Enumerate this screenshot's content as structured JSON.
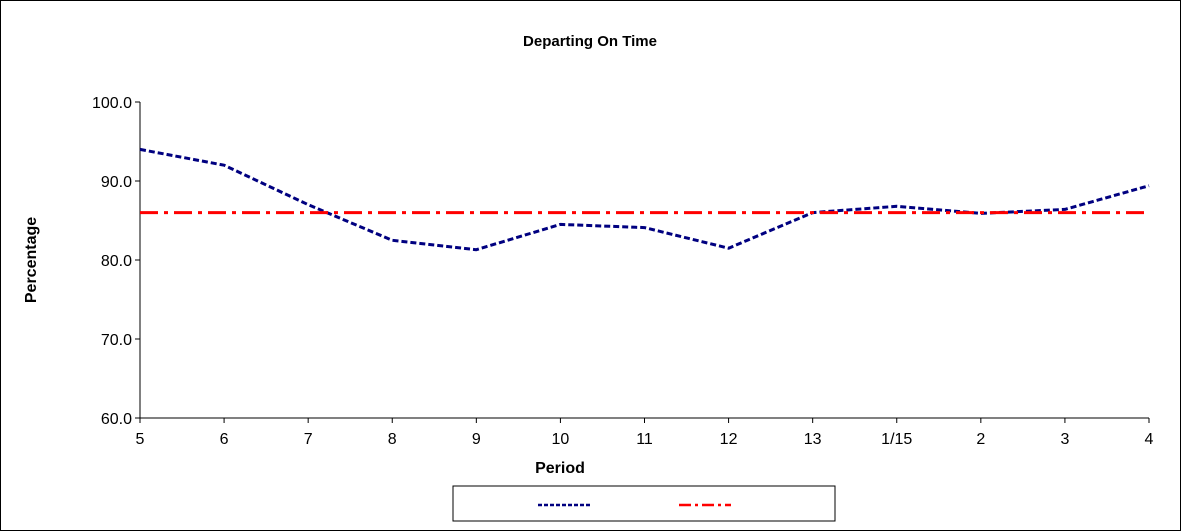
{
  "chart_data": {
    "type": "line",
    "title": "Departing On Time",
    "xlabel": "Period",
    "ylabel": "Percentage",
    "categories": [
      "5",
      "6",
      "7",
      "8",
      "9",
      "10",
      "11",
      "12",
      "13",
      "1/15",
      "2",
      "3",
      "4"
    ],
    "ylim": [
      60.0,
      100.0
    ],
    "yticks": [
      "60.0",
      "70.0",
      "80.0",
      "90.0",
      "100.0"
    ],
    "grid": false,
    "legend_placement": "bottom",
    "series": [
      {
        "name": "",
        "color": "#000080",
        "style": "dashed",
        "values": [
          94.0,
          92.0,
          87.0,
          82.5,
          81.3,
          84.5,
          84.1,
          81.5,
          86.0,
          86.8,
          85.9,
          86.4,
          89.4
        ]
      },
      {
        "name": "",
        "color": "#ff0000",
        "style": "dash-dot",
        "values": [
          86.0,
          86.0,
          86.0,
          86.0,
          86.0,
          86.0,
          86.0,
          86.0,
          86.0,
          86.0,
          86.0,
          86.0,
          86.0
        ]
      }
    ]
  }
}
